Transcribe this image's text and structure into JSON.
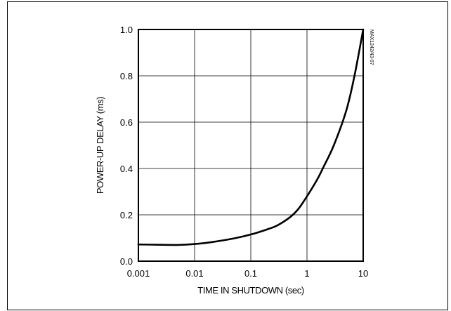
{
  "chart_data": {
    "type": "line",
    "xlabel": "TIME IN SHUTDOWN (sec)",
    "ylabel": "POWER-UP DELAY (ms)",
    "x_scale": "log",
    "xlim": [
      0.001,
      10
    ],
    "ylim": [
      0.0,
      1.0
    ],
    "x_ticks": [
      0.001,
      0.01,
      0.1,
      1,
      10
    ],
    "x_tick_labels": [
      "0.001",
      "0.01",
      "0.1",
      "1",
      "10"
    ],
    "y_ticks": [
      0.0,
      0.2,
      0.4,
      0.6,
      0.8,
      1.0
    ],
    "y_tick_labels": [
      "0.0",
      "0.2",
      "0.4",
      "0.6",
      "0.8",
      "1.0"
    ],
    "grid": true,
    "side_note": "MAX1242/43-07",
    "series": [
      {
        "x": [
          0.001,
          0.002,
          0.005,
          0.01,
          0.02,
          0.05,
          0.1,
          0.2,
          0.3,
          0.5,
          0.7,
          1,
          1.5,
          2,
          3,
          5,
          7,
          10
        ],
        "y": [
          0.072,
          0.071,
          0.07,
          0.074,
          0.082,
          0.098,
          0.115,
          0.138,
          0.155,
          0.19,
          0.225,
          0.28,
          0.35,
          0.41,
          0.5,
          0.65,
          0.8,
          1.0
        ]
      }
    ]
  }
}
